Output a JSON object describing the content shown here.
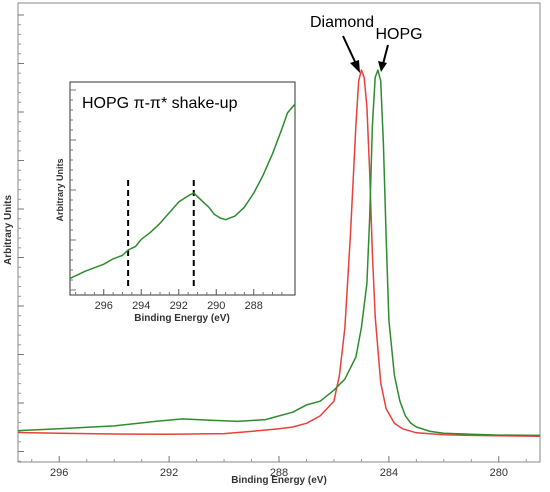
{
  "chart_data": [
    {
      "type": "line",
      "title": "",
      "xlabel": "Binding Energy (eV)",
      "ylabel": "Arbitrary Units",
      "xlim": [
        297.5,
        278.5
      ],
      "ylim": [
        0,
        1.0
      ],
      "x_ticks": [
        "296",
        "292",
        "288",
        "284",
        "280"
      ],
      "grid": false,
      "colors": {
        "Diamond": "#e8403a",
        "HOPG": "#2e8b2e"
      },
      "series": [
        {
          "name": "Diamond",
          "x": [
            297.5,
            296,
            294,
            292,
            290,
            289,
            288,
            287.5,
            287,
            286.5,
            286,
            285.8,
            285.6,
            285.4,
            285.2,
            285.1,
            285.0,
            284.9,
            284.8,
            284.7,
            284.6,
            284.5,
            284.3,
            284.1,
            283.8,
            283.5,
            283,
            282,
            281,
            280,
            278.5
          ],
          "y": [
            0.015,
            0.013,
            0.011,
            0.01,
            0.012,
            0.018,
            0.025,
            0.03,
            0.04,
            0.06,
            0.1,
            0.17,
            0.3,
            0.55,
            0.85,
            0.97,
            1.0,
            0.98,
            0.9,
            0.72,
            0.5,
            0.33,
            0.15,
            0.08,
            0.04,
            0.025,
            0.014,
            0.009,
            0.007,
            0.006,
            0.005
          ]
        },
        {
          "name": "HOPG",
          "x": [
            297.5,
            296,
            294,
            292.5,
            291.5,
            290.5,
            289.5,
            288.5,
            287.5,
            287,
            286.5,
            286,
            285.6,
            285.2,
            285.0,
            284.8,
            284.7,
            284.6,
            284.5,
            284.4,
            284.3,
            284.2,
            284.1,
            284.0,
            283.8,
            283.6,
            283.4,
            283.2,
            283,
            282.5,
            282,
            281,
            280,
            278.5
          ],
          "y": [
            0.02,
            0.025,
            0.033,
            0.045,
            0.052,
            0.048,
            0.045,
            0.05,
            0.07,
            0.09,
            0.1,
            0.13,
            0.16,
            0.22,
            0.3,
            0.42,
            0.6,
            0.85,
            0.98,
            1.0,
            0.97,
            0.8,
            0.55,
            0.32,
            0.17,
            0.1,
            0.06,
            0.04,
            0.03,
            0.018,
            0.013,
            0.01,
            0.008,
            0.007
          ]
        }
      ],
      "annotations": [
        {
          "text": "Diamond",
          "series": "Diamond"
        },
        {
          "text": "HOPG",
          "series": "HOPG"
        }
      ]
    },
    {
      "type": "line",
      "title": "HOPG π-π* shake-up",
      "xlabel": "Binding Energy (eV)",
      "ylabel": "Arbitrary Units",
      "xlim": [
        297.8,
        285.8
      ],
      "ylim": [
        0,
        1.0
      ],
      "x_ticks": [
        "296",
        "294",
        "292",
        "290",
        "288"
      ],
      "grid": false,
      "dashed_lines_x": [
        294.7,
        291.2
      ],
      "series": [
        {
          "name": "HOPG",
          "x": [
            297.8,
            297,
            296,
            295.5,
            295,
            294.7,
            294.3,
            294,
            293.5,
            293,
            292.5,
            292,
            291.7,
            291.4,
            291.2,
            291,
            290.7,
            290.4,
            290.1,
            289.8,
            289.5,
            289,
            288.5,
            288,
            287.5,
            287,
            286.5,
            286.2,
            285.8
          ],
          "y": [
            0.02,
            0.06,
            0.1,
            0.13,
            0.15,
            0.18,
            0.2,
            0.24,
            0.28,
            0.33,
            0.39,
            0.45,
            0.47,
            0.49,
            0.5,
            0.48,
            0.45,
            0.42,
            0.38,
            0.36,
            0.35,
            0.37,
            0.42,
            0.5,
            0.6,
            0.72,
            0.86,
            0.95,
            1.0
          ]
        }
      ]
    }
  ]
}
